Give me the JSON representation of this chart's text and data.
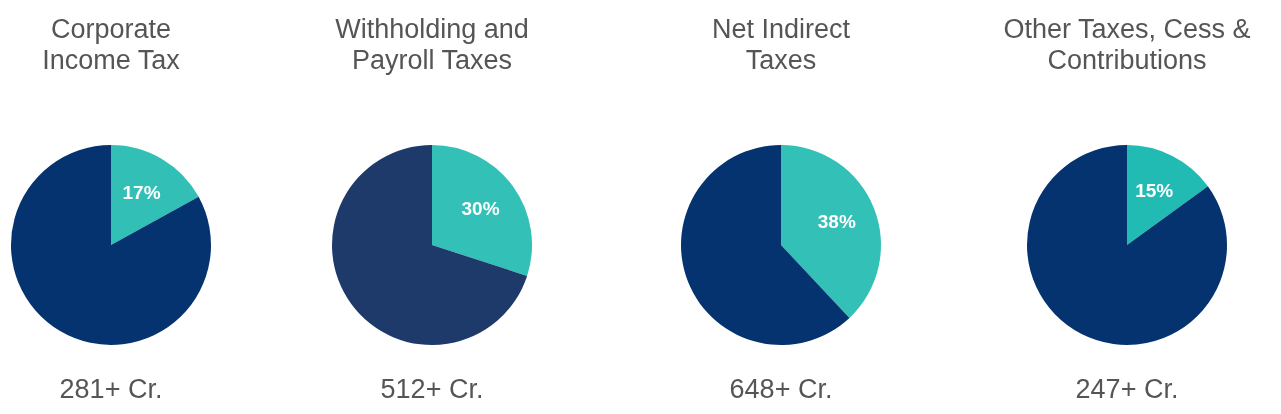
{
  "chart_data": [
    {
      "type": "pie",
      "title": "Corporate Income Tax",
      "categories": [
        null,
        null
      ],
      "values": [
        17,
        83
      ],
      "colors": [
        "#31bfb6",
        "#053370"
      ],
      "value_labels": [
        "17%",
        null
      ],
      "annotations": [
        "281+ Cr."
      ]
    },
    {
      "type": "pie",
      "title": "Withholding and Payroll Taxes",
      "categories": [
        null,
        null
      ],
      "values": [
        30,
        70
      ],
      "colors": [
        "#33c0b7",
        "#1e3a6b"
      ],
      "value_labels": [
        "30%",
        null
      ],
      "annotations": [
        "512+ Cr."
      ]
    },
    {
      "type": "pie",
      "title": "Net Indirect Taxes",
      "categories": [
        null,
        null
      ],
      "values": [
        38,
        62
      ],
      "colors": [
        "#33c0b7",
        "#053370"
      ],
      "value_labels": [
        "38%",
        null
      ],
      "annotations": [
        "648+ Cr."
      ]
    },
    {
      "type": "pie",
      "title": "Other Taxes, Cess & Contributions",
      "categories": [
        null,
        null
      ],
      "values": [
        15,
        85
      ],
      "colors": [
        "#22bbb3",
        "#053370"
      ],
      "value_labels": [
        "15%",
        null
      ],
      "annotations": [
        "247+ Cr."
      ]
    }
  ]
}
